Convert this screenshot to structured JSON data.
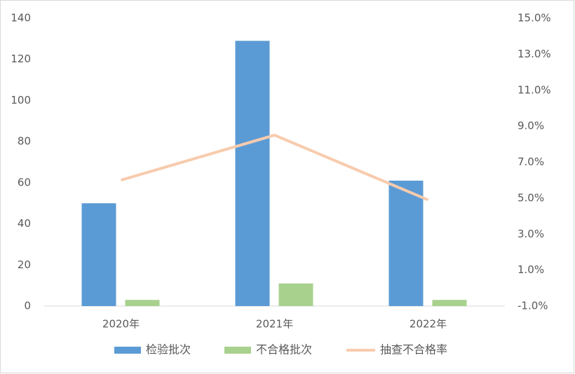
{
  "chart_data": {
    "type": "bar",
    "categories": [
      "2020年",
      "2021年",
      "2022年"
    ],
    "series": [
      {
        "name": "检验批次",
        "color": "#5b9bd5",
        "values": [
          50,
          129,
          61
        ]
      },
      {
        "name": "不合格批次",
        "color": "#a9d18e",
        "values": [
          3,
          11,
          3
        ]
      },
      {
        "name": "抽查不合格率",
        "color": "#f8cbad",
        "values": [
          6.0,
          8.5,
          4.9
        ],
        "axis": "y2",
        "type": "line"
      }
    ],
    "ylim": [
      0,
      140
    ],
    "yticks": [
      0,
      20,
      40,
      60,
      80,
      100,
      120,
      140
    ],
    "y2lim": [
      -1,
      15
    ],
    "y2ticks": [
      {
        "value": -1,
        "label": "-1.0%"
      },
      {
        "value": 1,
        "label": "1.0%"
      },
      {
        "value": 3,
        "label": "3.0%"
      },
      {
        "value": 5,
        "label": "5.0%"
      },
      {
        "value": 7,
        "label": "7.0%"
      },
      {
        "value": 9,
        "label": "9.0%"
      },
      {
        "value": 11,
        "label": "11.0%"
      },
      {
        "value": 13,
        "label": "13.0%"
      },
      {
        "value": 15,
        "label": "15.0%"
      }
    ],
    "grid": false,
    "legend": "bottom"
  }
}
